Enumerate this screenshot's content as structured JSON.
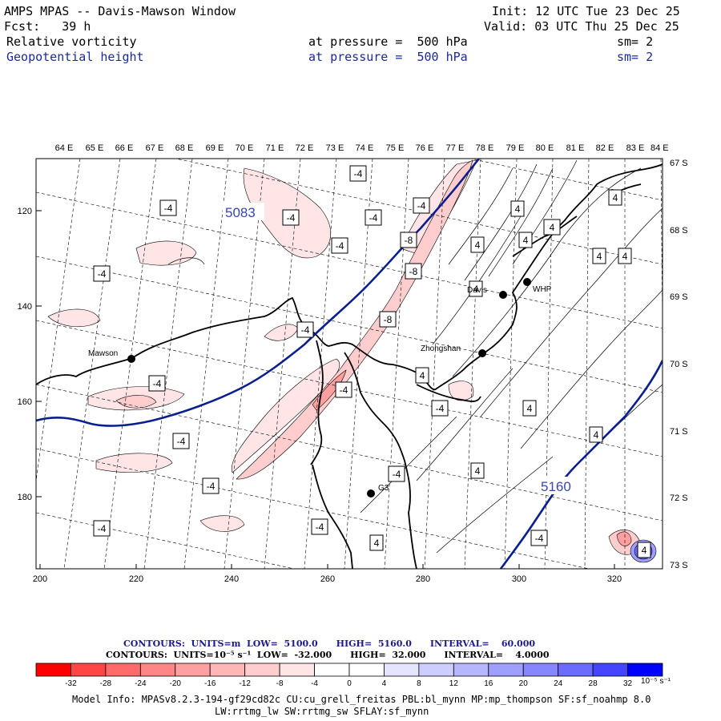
{
  "header": {
    "title": "AMPS MPAS -- Davis-Mawson Window",
    "init": "Init: 12 UTC Tue 23 Dec 25",
    "fcst": "Fcst:   39 h",
    "valid": "Valid: 03 UTC Thu 25 Dec 25",
    "field1": "Relative vorticity",
    "field1_level": "at pressure =  500 hPa",
    "field1_sm": "sm= 2",
    "field2": "Geopotential height",
    "field2_level": "at pressure =  500 hPa",
    "field2_sm": "sm= 2"
  },
  "map": {
    "top_lon_labels": [
      "64 E",
      "65 E",
      "66 E",
      "67 E",
      "68 E",
      "69 E",
      "70 E",
      "71 E",
      "72 E",
      "73 E",
      "74 E",
      "75 E",
      "76 E",
      "77 E",
      "78 E",
      "79 E",
      "80 E",
      "81 E",
      "82 E",
      "83 E",
      "84 E"
    ],
    "right_lat_labels": [
      "67 S",
      "68 S",
      "69 S",
      "70 S",
      "71 S",
      "72 S",
      "73 S"
    ],
    "left_y_ticks": [
      "120",
      "140",
      "160",
      "180"
    ],
    "bottom_x_ticks": [
      "200",
      "220",
      "240",
      "260",
      "280",
      "300",
      "320"
    ],
    "stations": [
      "Mawson",
      "Davis",
      "WHP",
      "Zhongshan",
      "G3"
    ],
    "height_labels": [
      "5083",
      "5160"
    ],
    "vort_labels": [
      "-4",
      "-4",
      "-4",
      "-4",
      "-4",
      "-4",
      "-4",
      "-4",
      "-8",
      "-8",
      "-8",
      "-4",
      "-4",
      "-4",
      "-4",
      "-4",
      "-4",
      "-4",
      "-4",
      "-4",
      "4",
      "4",
      "4",
      "4",
      "4",
      "4",
      "4",
      "4",
      "4",
      "4",
      "4",
      "4",
      "4",
      "4"
    ],
    "colors": {
      "height_contour": "#0a1f8f",
      "coast": "#000000",
      "grid": "#000000"
    }
  },
  "contour_info": {
    "line1": "CONTOURS:  UNITS=m  LOW=  5100.0      HIGH=  5160.0      INTERVAL=    60.000",
    "line2": "CONTOURS:  UNITS=10⁻⁵ s⁻¹  LOW=  -32.000      HIGH=  32.000      INTERVAL=    4.0000"
  },
  "colorbar": {
    "tick_labels": [
      "-32",
      "-28",
      "-24",
      "-20",
      "-16",
      "-12",
      "-8",
      "-4",
      "0",
      "4",
      "8",
      "12",
      "16",
      "20",
      "24",
      "28",
      "32"
    ],
    "units": "10⁻⁵ s⁻¹",
    "colors": [
      "#ff0000",
      "#ff4545",
      "#ff6b6b",
      "#ff8686",
      "#ff9f9f",
      "#ffb6b6",
      "#ffcdcd",
      "#ffe5e5",
      "#ffffff",
      "#ffffff",
      "#e5e5ff",
      "#cdcdff",
      "#b6b6ff",
      "#9f9fff",
      "#8686ff",
      "#6b6bff",
      "#4545ff",
      "#0000ff"
    ]
  },
  "footer": {
    "line1": "Model Info: MPASv8.2.3-194-gf29cd82c CU:cu_grell_freitas PBL:bl_mynn MP:mp_thompson SF:sf_noahmp 8.0",
    "line2": "LW:rrtmg_lw SW:rrtmg_sw SFLAY:sf_mynn"
  }
}
